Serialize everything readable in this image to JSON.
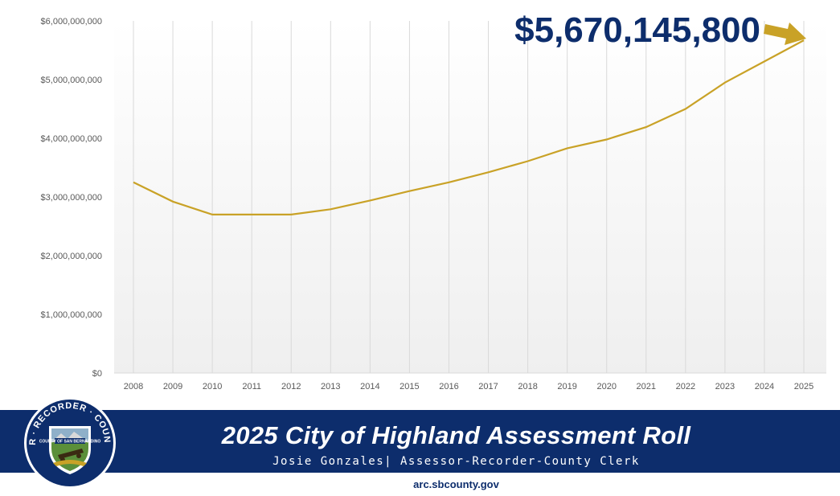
{
  "chart_data": {
    "type": "line",
    "x": [
      "2008",
      "2009",
      "2010",
      "2011",
      "2012",
      "2013",
      "2014",
      "2015",
      "2016",
      "2017",
      "2018",
      "2019",
      "2020",
      "2021",
      "2022",
      "2023",
      "2024",
      "2025"
    ],
    "series": [
      {
        "values": [
          3250000000,
          2920000000,
          2700000000,
          2700000000,
          2700000000,
          2790000000,
          2940000000,
          3100000000,
          3250000000,
          3420000000,
          3610000000,
          3830000000,
          3980000000,
          4190000000,
          4500000000,
          4950000000,
          5310000000,
          5670145800
        ]
      }
    ],
    "yticks": [
      "$0",
      "$1,000,000,000",
      "$2,000,000,000",
      "$3,000,000,000",
      "$4,000,000,000",
      "$5,000,000,000",
      "$6,000,000,000"
    ],
    "ylim": [
      0,
      6000000000
    ],
    "grid": "vertical",
    "line_color": "#c9a227",
    "annotation": "$5,670,145,800"
  },
  "banner": {
    "title": "2025 City of Highland Assessment Roll",
    "subtitle": "Josie Gonzales| Assessor-Recorder-County Clerk",
    "url": "arc.sbcounty.gov",
    "color": "#0d2d6c"
  },
  "seal": {
    "text": "ASSESSOR · RECORDER · COUNTY CLERK",
    "inner": "COUNTY OF SAN BERNARDINO"
  }
}
